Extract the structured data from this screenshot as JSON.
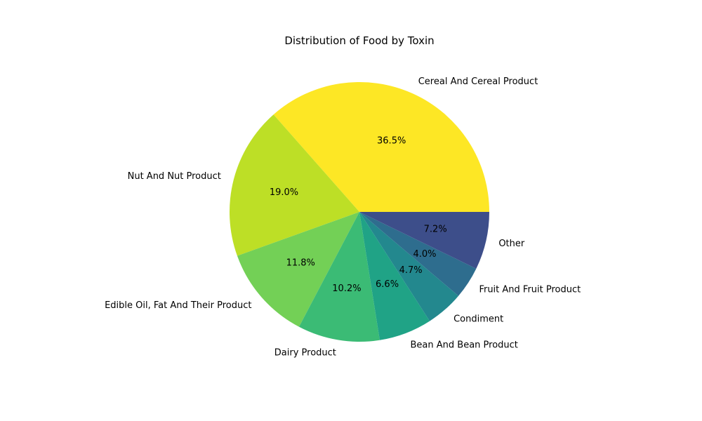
{
  "chart_data": {
    "type": "pie",
    "title": "Distribution of Food by Toxin",
    "categories": [
      "Cereal And Cereal Product",
      "Nut And Nut Product",
      "Edible Oil, Fat And Their Product",
      "Dairy Product",
      "Bean And Bean Product",
      "Condiment",
      "Fruit And Fruit Product",
      "Other"
    ],
    "values": [
      36.5,
      19.0,
      11.8,
      10.2,
      6.6,
      4.7,
      4.0,
      7.2
    ],
    "value_labels": [
      "36.5%",
      "19.0%",
      "11.8%",
      "10.2%",
      "6.6%",
      "4.7%",
      "4.0%",
      "7.2%"
    ],
    "colors": [
      "#fde725",
      "#bddf26",
      "#73d056",
      "#3bbb75",
      "#20a386",
      "#23888e",
      "#2e6d8e",
      "#3d4e8a"
    ],
    "start_angle_deg": 0,
    "direction": "counterclockwise"
  }
}
